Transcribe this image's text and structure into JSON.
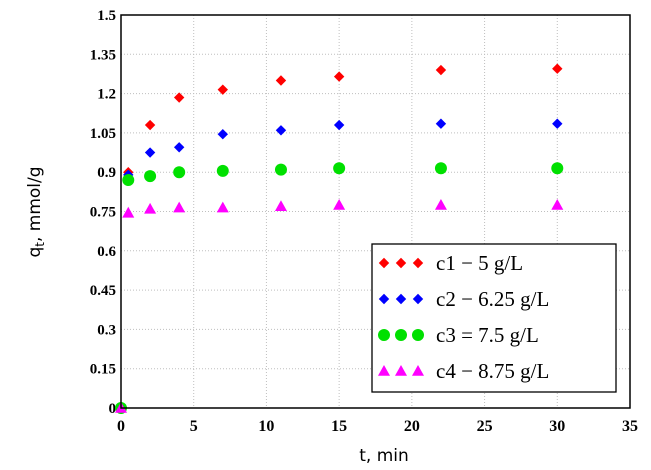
{
  "chart_data": {
    "type": "scatter",
    "xlabel": "t, min",
    "ylabel": "qt, mmol/g",
    "ylabel_main": "q",
    "ylabel_sub": "t",
    "ylabel_rest": ", mmol/g",
    "xlim": [
      0,
      35
    ],
    "ylim": [
      0,
      1.5
    ],
    "x_ticks": [
      0,
      5,
      10,
      15,
      20,
      25,
      30,
      35
    ],
    "x_tick_labels": [
      "0",
      "5",
      "10",
      "15",
      "20",
      "25",
      "30",
      "35"
    ],
    "y_ticks": [
      0,
      0.15,
      0.3,
      0.45,
      0.6,
      0.75,
      0.9,
      1.05,
      1.2,
      1.35,
      1.5
    ],
    "y_tick_labels": [
      "0",
      "0.15",
      "0.3",
      "0.45",
      "0.6",
      "0.75",
      "0.9",
      "1.05",
      "1.2",
      "1.35",
      "1.5"
    ],
    "grid": true,
    "legend_position": "bottom-right",
    "series": [
      {
        "name": "c1 − 5 g/L",
        "marker": "diamond",
        "color": "#ff0000",
        "x": [
          0,
          0.5,
          2,
          4,
          7,
          11,
          15,
          22,
          30
        ],
        "y": [
          0,
          0.9,
          1.08,
          1.185,
          1.215,
          1.25,
          1.265,
          1.29,
          1.295
        ]
      },
      {
        "name": "c2 − 6.25 g/L",
        "marker": "diamond",
        "color": "#0000ff",
        "x": [
          0,
          0.5,
          2,
          4,
          7,
          11,
          15,
          22,
          30
        ],
        "y": [
          0,
          0.89,
          0.975,
          0.995,
          1.045,
          1.06,
          1.08,
          1.085,
          1.085
        ]
      },
      {
        "name": "c3 = 7.5 g/L",
        "marker": "circle",
        "color": "#00e000",
        "x": [
          0,
          0.5,
          2,
          4,
          7,
          11,
          15,
          22,
          30
        ],
        "y": [
          0,
          0.87,
          0.885,
          0.9,
          0.905,
          0.91,
          0.915,
          0.915,
          0.915
        ]
      },
      {
        "name": "c4 − 8.75 g/L",
        "marker": "triangle",
        "color": "#ff00ff",
        "x": [
          0,
          0.5,
          2,
          4,
          7,
          11,
          15,
          22,
          30
        ],
        "y": [
          0,
          0.745,
          0.76,
          0.765,
          0.765,
          0.77,
          0.775,
          0.775,
          0.775
        ]
      }
    ]
  }
}
